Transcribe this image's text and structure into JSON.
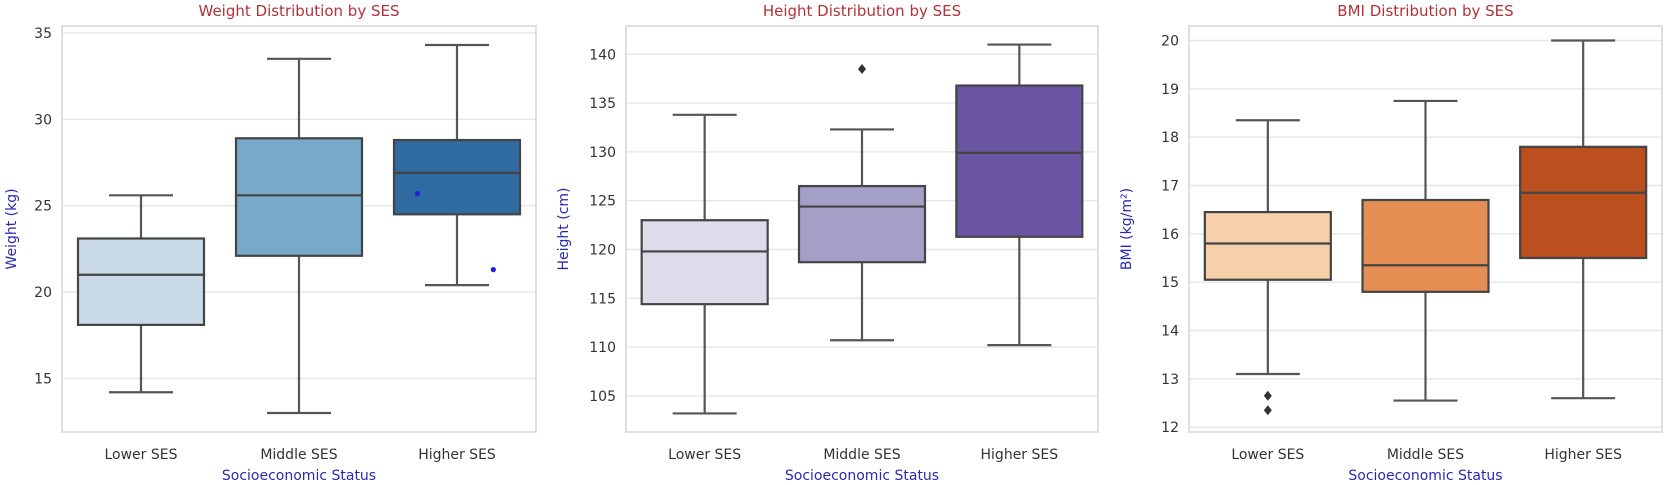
{
  "chart_data": [
    {
      "type": "box",
      "title": "Weight Distribution by SES",
      "xlabel": "Socioeconomic Status",
      "ylabel": "Weight (kg)",
      "ylim": [
        11.9,
        35.4
      ],
      "yticks": [
        15,
        20,
        25,
        30,
        35
      ],
      "grid": true,
      "categories": [
        "Lower SES",
        "Middle SES",
        "Higher SES"
      ],
      "colors": [
        "#cad9ea",
        "#77a9c9",
        "#2f6aa0"
      ],
      "boxes": [
        {
          "category": "Lower SES",
          "whisker_low": 14.2,
          "q1": 18.1,
          "median": 21.0,
          "q3": 23.1,
          "whisker_high": 25.6,
          "fliers": []
        },
        {
          "category": "Middle SES",
          "whisker_low": 13.0,
          "q1": 22.1,
          "median": 25.6,
          "q3": 28.9,
          "whisker_high": 33.5,
          "fliers": []
        },
        {
          "category": "Higher SES",
          "whisker_low": 20.4,
          "q1": 24.5,
          "median": 26.9,
          "q3": 28.8,
          "whisker_high": 34.3,
          "fliers": []
        }
      ],
      "extra_points": [
        {
          "category": "Higher SES",
          "offset": -0.25,
          "value": 25.7
        },
        {
          "category": "Higher SES",
          "offset": 0.23,
          "value": 21.3
        }
      ]
    },
    {
      "type": "box",
      "title": "Height Distribution by SES",
      "xlabel": "Socioeconomic Status",
      "ylabel": "Height (cm)",
      "ylim": [
        101.3,
        142.9
      ],
      "yticks": [
        105,
        110,
        115,
        120,
        125,
        130,
        135,
        140
      ],
      "grid": true,
      "categories": [
        "Lower SES",
        "Middle SES",
        "Higher SES"
      ],
      "colors": [
        "#dcdcea",
        "#a39fc6",
        "#6a55a3"
      ],
      "boxes": [
        {
          "category": "Lower SES",
          "whisker_low": 103.2,
          "q1": 114.4,
          "median": 119.8,
          "q3": 123.0,
          "whisker_high": 133.8,
          "fliers": []
        },
        {
          "category": "Middle SES",
          "whisker_low": 110.7,
          "q1": 118.7,
          "median": 124.4,
          "q3": 126.5,
          "whisker_high": 132.3,
          "fliers": [
            138.5
          ]
        },
        {
          "category": "Higher SES",
          "whisker_low": 110.2,
          "q1": 121.3,
          "median": 129.9,
          "q3": 136.8,
          "whisker_high": 141.0,
          "fliers": []
        }
      ],
      "extra_points": []
    },
    {
      "type": "box",
      "title": "BMI Distribution by SES",
      "xlabel": "Socioeconomic Status",
      "ylabel": "BMI (kg/m²)",
      "ylim": [
        11.9,
        20.3
      ],
      "yticks": [
        12,
        13,
        14,
        15,
        16,
        17,
        18,
        19,
        20
      ],
      "grid": true,
      "categories": [
        "Lower SES",
        "Middle SES",
        "Higher SES"
      ],
      "colors": [
        "#f5d0a9",
        "#e48e54",
        "#bb4f1d"
      ],
      "boxes": [
        {
          "category": "Lower SES",
          "whisker_low": 13.1,
          "q1": 15.05,
          "median": 15.8,
          "q3": 16.45,
          "whisker_high": 18.35,
          "fliers": [
            12.65,
            12.35
          ]
        },
        {
          "category": "Middle SES",
          "whisker_low": 12.55,
          "q1": 14.8,
          "median": 15.35,
          "q3": 16.7,
          "whisker_high": 18.75,
          "fliers": []
        },
        {
          "category": "Higher SES",
          "whisker_low": 12.6,
          "q1": 15.5,
          "median": 16.85,
          "q3": 17.8,
          "whisker_high": 20.0,
          "fliers": []
        }
      ],
      "extra_points": []
    }
  ]
}
